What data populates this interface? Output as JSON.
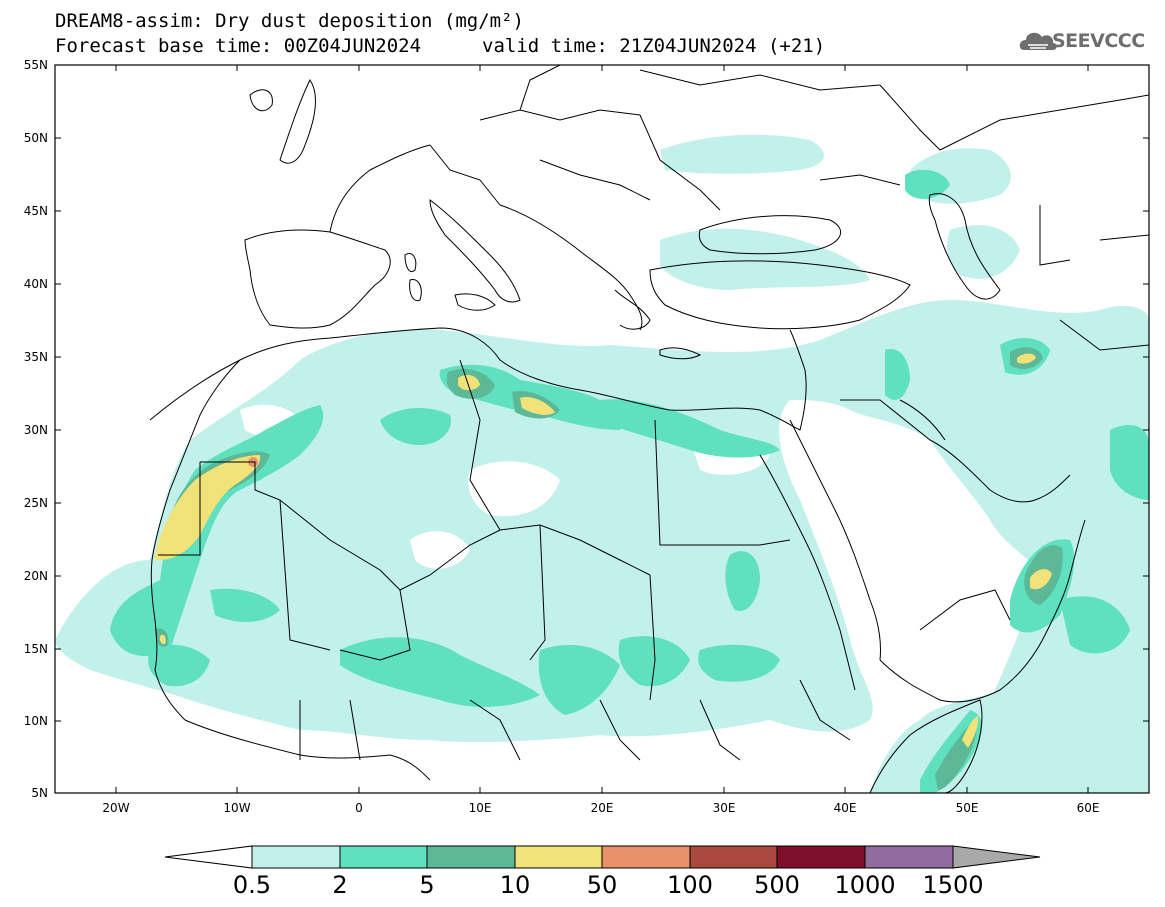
{
  "header": {
    "title": "DREAM8-assim: Dry dust deposition (mg/m²)",
    "base_time": "Forecast base time: 00Z04JUN2024",
    "valid_time": "valid time: 21Z04JUN2024 (+21)"
  },
  "logo": {
    "text": "SEEVCCC"
  },
  "map": {
    "lat_labels": [
      "55N",
      "50N",
      "45N",
      "40N",
      "35N",
      "30N",
      "25N",
      "20N",
      "15N",
      "10N",
      "5N"
    ],
    "lon_labels": [
      "20W",
      "10W",
      "0",
      "10E",
      "20E",
      "30E",
      "40E",
      "50E",
      "60E"
    ]
  },
  "colorbar": {
    "labels": [
      "0.5",
      "2",
      "5",
      "10",
      "50",
      "100",
      "500",
      "1000",
      "1500"
    ],
    "colors": [
      "#ffffff",
      "#c2f0ea",
      "#5fe0bf",
      "#5cb896",
      "#f2e27a",
      "#e8916a",
      "#a84a40",
      "#800f2c",
      "#916c9e",
      "#a9a9a9"
    ]
  },
  "palette": {
    "low": "#c2f0ea",
    "mid": "#5fe0bf",
    "high": "#5cb896",
    "peak": "#f2e27a",
    "extreme": "#e8916a",
    "border": "#000000"
  }
}
